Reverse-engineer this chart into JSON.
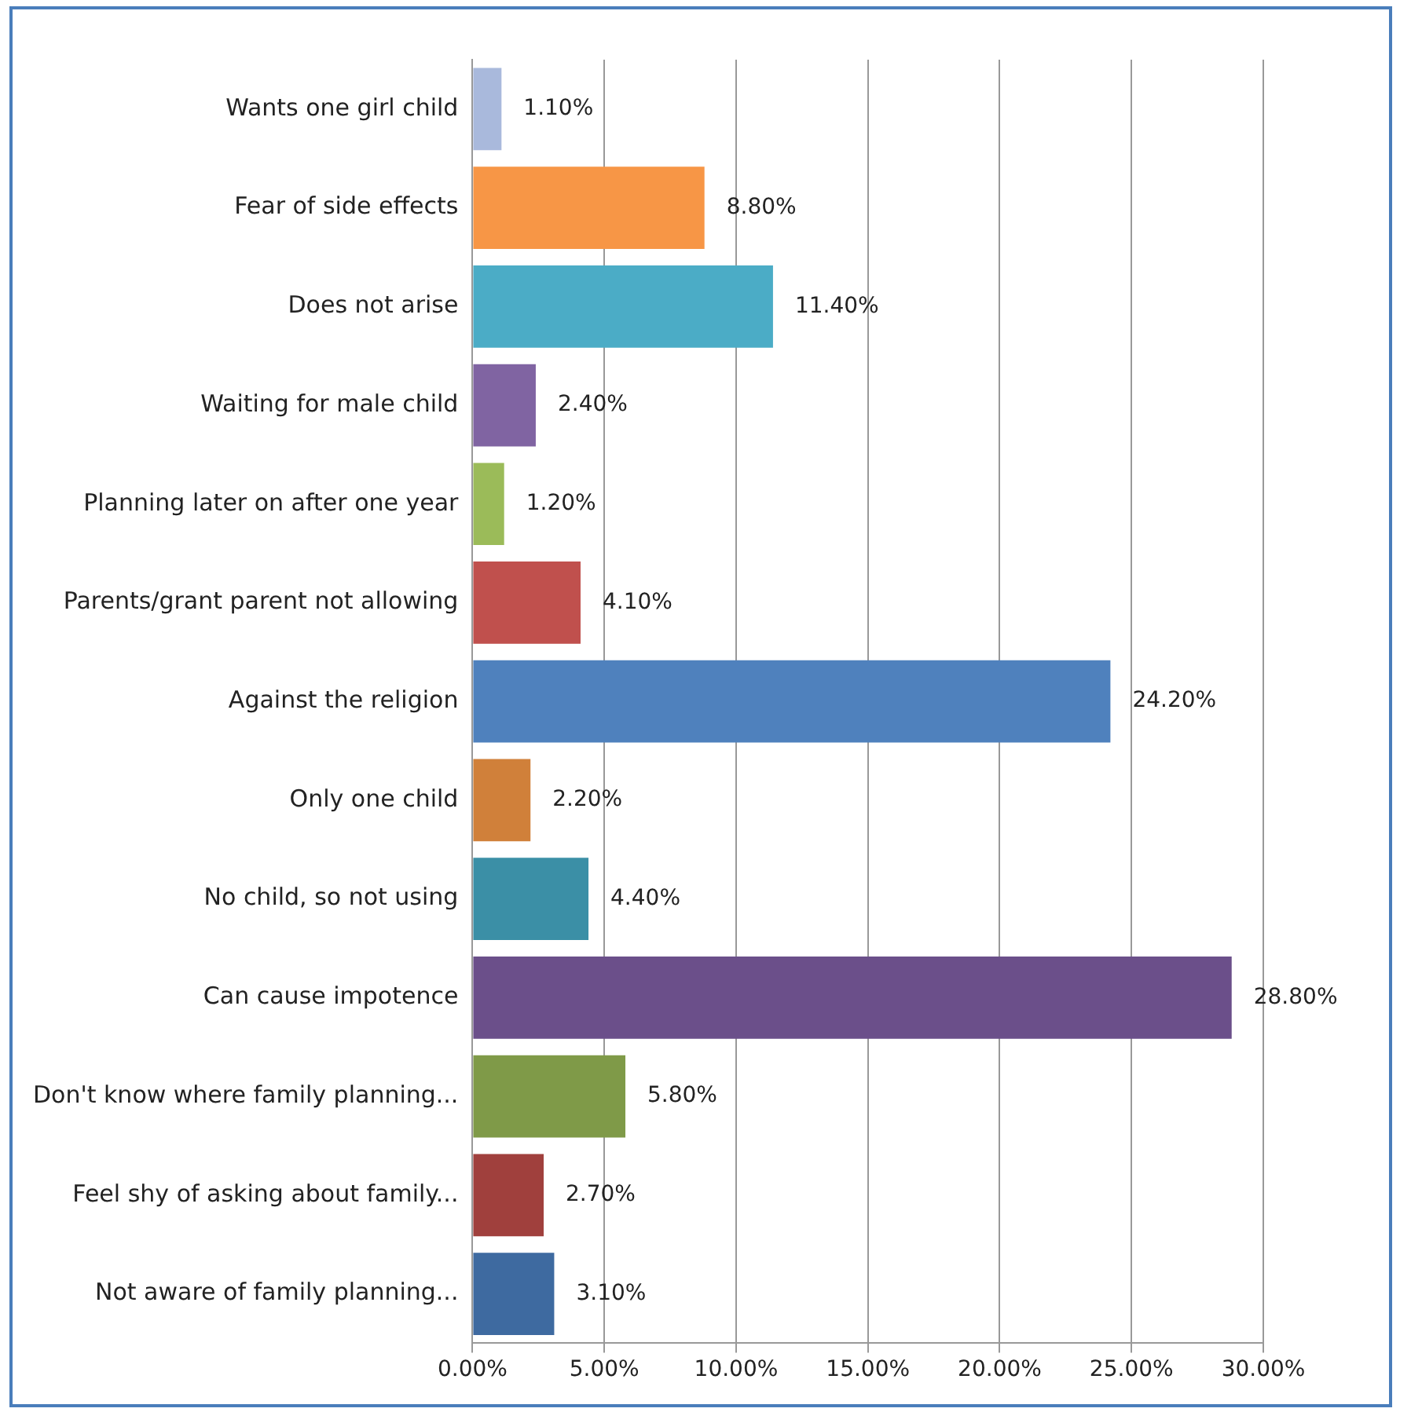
{
  "chart_data": {
    "type": "bar",
    "orientation": "horizontal",
    "categories": [
      "Wants one girl child",
      "Fear of side effects",
      "Does not arise",
      "Waiting for male child",
      "Planning later on after one year",
      "Parents/grant parent not allowing",
      "Against the religion",
      "Only one child",
      "No child, so not using",
      "Can cause impotence",
      "Don't know where family planning...",
      "Feel shy of asking about family...",
      "Not aware of family planning..."
    ],
    "values": [
      1.1,
      8.8,
      11.4,
      2.4,
      1.2,
      4.1,
      24.2,
      2.2,
      4.4,
      28.8,
      5.8,
      2.7,
      3.1
    ],
    "value_labels": [
      "1.10%",
      "8.80%",
      "11.40%",
      "2.40%",
      "1.20%",
      "4.10%",
      "24.20%",
      "2.20%",
      "4.40%",
      "28.80%",
      "5.80%",
      "2.70%",
      "3.10%"
    ],
    "colors": [
      "#a9b9dc",
      "#f79646",
      "#4bacc6",
      "#8064a2",
      "#9bbb59",
      "#c0504d",
      "#4f81bd",
      "#d0803a",
      "#3b8fa6",
      "#6b4f8a",
      "#7f9a48",
      "#a0403d",
      "#3e6aa0"
    ],
    "xlim": [
      0,
      30
    ],
    "xticks": [
      {
        "value": 0,
        "label": "0.00%"
      },
      {
        "value": 5,
        "label": "5.00%"
      },
      {
        "value": 10,
        "label": "10.00%"
      },
      {
        "value": 15,
        "label": "15.00%"
      },
      {
        "value": 20,
        "label": "20.00%"
      },
      {
        "value": 25,
        "label": "25.00%"
      },
      {
        "value": 30,
        "label": "30.00%"
      }
    ],
    "grid": "x",
    "legend": false
  }
}
